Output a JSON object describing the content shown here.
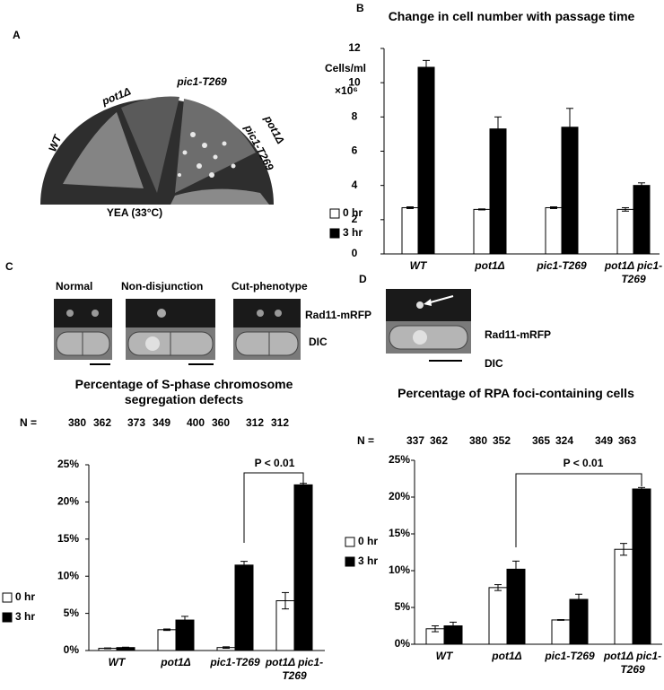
{
  "panel_labels": [
    "A",
    "B",
    "C",
    "D"
  ],
  "plate": {
    "labels": [
      "pot1Δ",
      "pic1-T269",
      "WT"
    ],
    "combined_label": [
      "pot1Δ",
      "pic1-T269"
    ],
    "medium": "YEA (33°C)"
  },
  "micrographs_c": {
    "phenotypes": [
      "Normal",
      "Non-disjunction",
      "Cut-phenotype"
    ],
    "channels": [
      "Rad11-mRFP",
      "DIC"
    ]
  },
  "micrographs_d": {
    "channels": [
      "Rad11-mRFP",
      "DIC"
    ]
  },
  "chart_data": [
    {
      "type": "bar",
      "title": "Change in cell number with passage time",
      "ylabel": "Cells/ml",
      "ylabel_unit": "×10⁶",
      "categories": [
        "WT",
        "pot1Δ",
        "pic1-T269",
        "pot1Δ pic1-T269"
      ],
      "series": [
        {
          "name": "0 hr",
          "color": "#ffffff",
          "values": [
            2.7,
            2.6,
            2.7,
            2.6
          ],
          "errors": [
            0.05,
            0.03,
            0.05,
            0.1
          ]
        },
        {
          "name": "3 hr",
          "color": "#000000",
          "values": [
            10.9,
            7.3,
            7.4,
            4.0
          ],
          "errors": [
            0.4,
            0.7,
            1.1,
            0.15
          ]
        }
      ],
      "ylim": [
        0,
        12
      ],
      "yticks": [
        0,
        2,
        4,
        6,
        8,
        10,
        12
      ],
      "legend": "left"
    },
    {
      "type": "bar",
      "title": "Percentage of S-phase chromosome segregation defects",
      "n_label": "N =",
      "n": [
        380,
        362,
        373,
        349,
        400,
        360,
        312,
        312
      ],
      "categories": [
        "WT",
        "pot1Δ",
        "pic1-T269",
        "pot1Δ pic1-T269"
      ],
      "series": [
        {
          "name": "0 hr",
          "color": "#ffffff",
          "values": [
            0.3,
            2.8,
            0.4,
            6.7
          ],
          "errors": [
            0.05,
            0.1,
            0.1,
            1.1
          ]
        },
        {
          "name": "3 hr",
          "color": "#000000",
          "values": [
            0.4,
            4.1,
            11.5,
            22.3
          ],
          "errors": [
            0.05,
            0.5,
            0.5,
            0.2
          ]
        }
      ],
      "ylim": [
        0,
        25
      ],
      "yticks": [
        {
          "value": 0,
          "label": "0%"
        },
        {
          "value": 5,
          "label": "5%"
        },
        {
          "value": 10,
          "label": "10%"
        },
        {
          "value": 15,
          "label": "15%"
        },
        {
          "value": 20,
          "label": "20%"
        },
        {
          "value": 25,
          "label": "25%"
        }
      ],
      "annotation": "P < 0.01",
      "legend": "left"
    },
    {
      "type": "bar",
      "title": "Percentage of RPA foci-containing cells",
      "n_label": "N =",
      "n": [
        337,
        362,
        380,
        352,
        365,
        324,
        349,
        363
      ],
      "categories": [
        "WT",
        "pot1Δ",
        "pic1-T269",
        "pot1Δ pic1-T269"
      ],
      "series": [
        {
          "name": "0 hr",
          "color": "#ffffff",
          "values": [
            2.1,
            7.7,
            3.3,
            12.9
          ],
          "errors": [
            0.4,
            0.4,
            0.05,
            0.8
          ]
        },
        {
          "name": "3 hr",
          "color": "#000000",
          "values": [
            2.5,
            10.2,
            6.1,
            21.1
          ],
          "errors": [
            0.5,
            1.1,
            0.7,
            0.2
          ]
        }
      ],
      "ylim": [
        0,
        25
      ],
      "yticks": [
        {
          "value": 0,
          "label": "0%"
        },
        {
          "value": 5,
          "label": "5%"
        },
        {
          "value": 10,
          "label": "10%"
        },
        {
          "value": 15,
          "label": "15%"
        },
        {
          "value": 20,
          "label": "20%"
        },
        {
          "value": 25,
          "label": "25%"
        }
      ],
      "annotation": "P < 0.01",
      "legend": "left"
    }
  ]
}
